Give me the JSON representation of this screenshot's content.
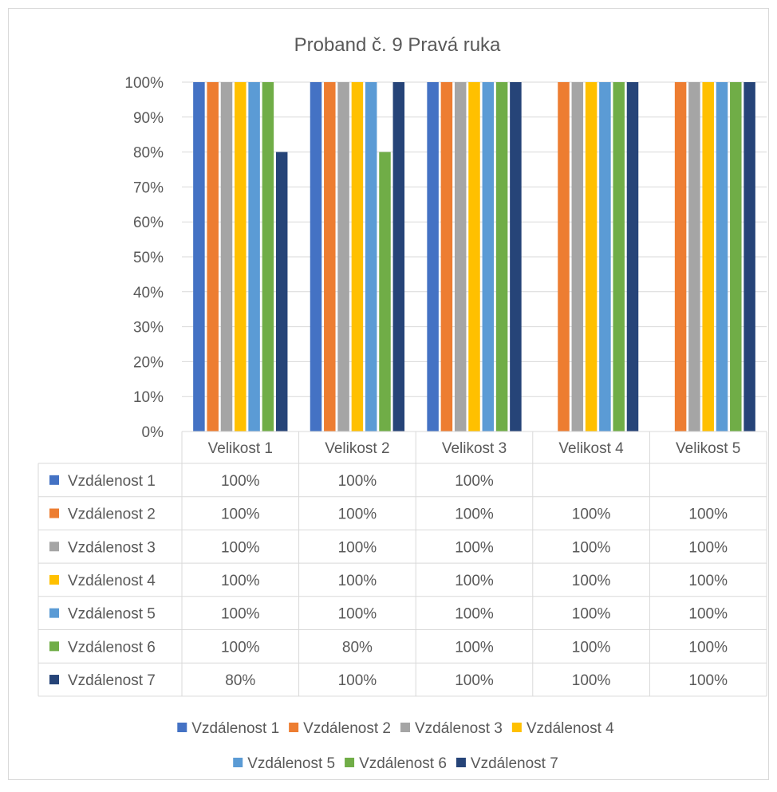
{
  "chart_data": {
    "type": "bar",
    "title": "Proband č. 9 Pravá ruka",
    "categories": [
      "Velikost 1",
      "Velikost 2",
      "Velikost 3",
      "Velikost 4",
      "Velikost 5"
    ],
    "ylim": [
      0,
      1
    ],
    "yticks": [
      "0%",
      "10%",
      "20%",
      "30%",
      "40%",
      "50%",
      "60%",
      "70%",
      "80%",
      "90%",
      "100%"
    ],
    "grid": true,
    "legend_position": "bottom",
    "data_table": true,
    "series": [
      {
        "name": "Vzdálenost 1",
        "color": "#4472C4",
        "values": [
          1.0,
          1.0,
          1.0,
          null,
          null
        ],
        "labels": [
          "100%",
          "100%",
          "100%",
          "",
          ""
        ]
      },
      {
        "name": "Vzdálenost 2",
        "color": "#ED7D31",
        "values": [
          1.0,
          1.0,
          1.0,
          1.0,
          1.0
        ],
        "labels": [
          "100%",
          "100%",
          "100%",
          "100%",
          "100%"
        ]
      },
      {
        "name": "Vzdálenost 3",
        "color": "#A5A5A5",
        "values": [
          1.0,
          1.0,
          1.0,
          1.0,
          1.0
        ],
        "labels": [
          "100%",
          "100%",
          "100%",
          "100%",
          "100%"
        ]
      },
      {
        "name": "Vzdálenost 4",
        "color": "#FFC000",
        "values": [
          1.0,
          1.0,
          1.0,
          1.0,
          1.0
        ],
        "labels": [
          "100%",
          "100%",
          "100%",
          "100%",
          "100%"
        ]
      },
      {
        "name": "Vzdálenost 5",
        "color": "#5B9BD5",
        "values": [
          1.0,
          1.0,
          1.0,
          1.0,
          1.0
        ],
        "labels": [
          "100%",
          "100%",
          "100%",
          "100%",
          "100%"
        ]
      },
      {
        "name": "Vzdálenost 6",
        "color": "#70AD47",
        "values": [
          1.0,
          0.8,
          1.0,
          1.0,
          1.0
        ],
        "labels": [
          "100%",
          "80%",
          "100%",
          "100%",
          "100%"
        ]
      },
      {
        "name": "Vzdálenost 7",
        "color": "#264478",
        "values": [
          0.8,
          1.0,
          1.0,
          1.0,
          1.0
        ],
        "labels": [
          "80%",
          "100%",
          "100%",
          "100%",
          "100%"
        ]
      }
    ]
  }
}
